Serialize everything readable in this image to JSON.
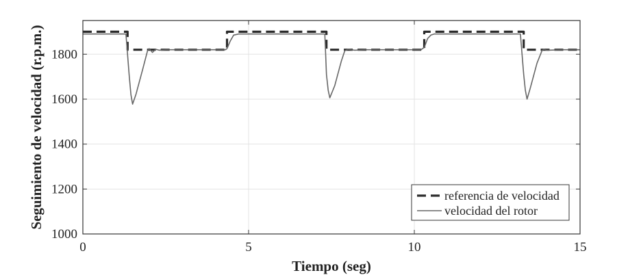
{
  "chart_data": {
    "type": "line",
    "title": "",
    "xlabel": "Tiempo (seg)",
    "ylabel": "Seguimiento de velocidad (r.p.m.)",
    "xlim": [
      0,
      15
    ],
    "ylim": [
      1000,
      1950
    ],
    "xticks": [
      "0",
      "5",
      "10",
      "15"
    ],
    "yticks": [
      "1000",
      "1200",
      "1400",
      "1600",
      "1800"
    ],
    "grid": true,
    "legend_position": "bottom-right",
    "series": [
      {
        "name": "referencia de velocidad",
        "style": "dashed",
        "color": "#2b2b2b",
        "x": [
          0,
          1.35,
          1.35,
          4.35,
          4.35,
          7.35,
          7.35,
          10.3,
          10.3,
          13.3,
          13.3,
          15
        ],
        "values": [
          1900,
          1900,
          1820,
          1820,
          1900,
          1900,
          1820,
          1820,
          1900,
          1900,
          1820,
          1820
        ]
      },
      {
        "name": "velocidad del rotor",
        "style": "solid",
        "color": "#666666",
        "x": [
          0,
          1.3,
          1.4,
          1.45,
          1.5,
          1.6,
          1.8,
          1.95,
          2.0,
          2.1,
          2.2,
          2.3,
          2.5,
          3.0,
          4.3,
          4.35,
          4.45,
          4.55,
          4.7,
          5.0,
          7.3,
          7.35,
          7.4,
          7.45,
          7.6,
          7.8,
          7.9,
          8.0,
          8.2,
          8.5,
          10.2,
          10.3,
          10.4,
          10.5,
          10.6,
          10.8,
          13.2,
          13.3,
          13.35,
          13.4,
          13.5,
          13.7,
          13.85,
          13.9,
          14.0,
          14.5,
          15
        ],
        "values": [
          1890,
          1890,
          1700,
          1620,
          1578,
          1620,
          1730,
          1815,
          1825,
          1808,
          1822,
          1818,
          1820,
          1820,
          1820,
          1825,
          1860,
          1885,
          1890,
          1890,
          1890,
          1710,
          1640,
          1606,
          1660,
          1770,
          1815,
          1822,
          1818,
          1820,
          1820,
          1830,
          1870,
          1885,
          1890,
          1890,
          1890,
          1710,
          1640,
          1600,
          1650,
          1760,
          1815,
          1822,
          1818,
          1820,
          1820
        ]
      }
    ]
  }
}
